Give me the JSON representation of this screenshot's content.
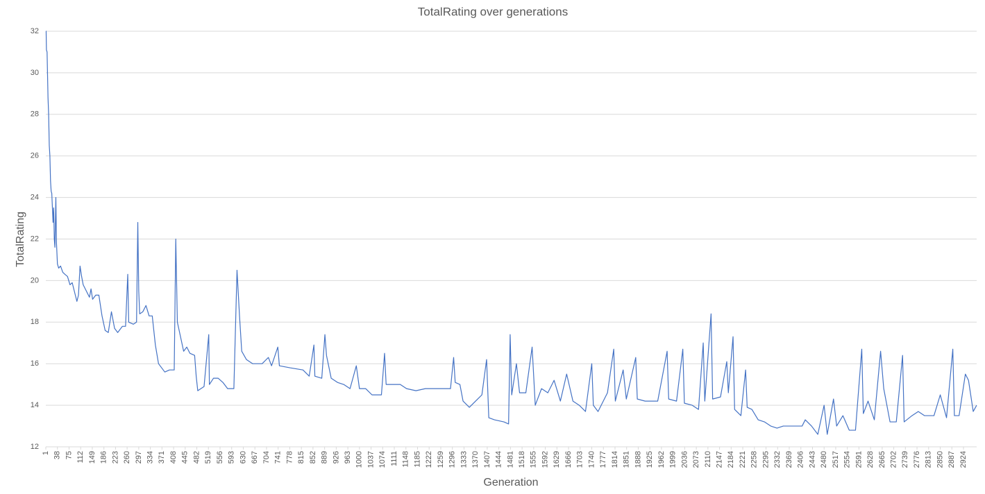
{
  "chart_data": {
    "type": "line",
    "title": "TotalRating over generations",
    "x_label": "Generation",
    "y_label": "TotalRating",
    "color": "#4472c4",
    "grid": true,
    "xlim": [
      1,
      2966
    ],
    "ylim": [
      12,
      32
    ],
    "yticks": [
      12,
      14,
      16,
      18,
      20,
      22,
      24,
      26,
      28,
      30,
      32
    ],
    "xticks": [
      1,
      38,
      75,
      112,
      149,
      186,
      223,
      260,
      297,
      334,
      371,
      408,
      445,
      482,
      519,
      556,
      593,
      630,
      667,
      704,
      741,
      778,
      815,
      852,
      889,
      926,
      963,
      1000,
      1037,
      1074,
      1111,
      1148,
      1185,
      1222,
      1259,
      1296,
      1333,
      1370,
      1407,
      1444,
      1481,
      1518,
      1555,
      1592,
      1629,
      1666,
      1703,
      1740,
      1777,
      1814,
      1851,
      1888,
      1925,
      1962,
      1999,
      2036,
      2073,
      2110,
      2147,
      2184,
      2221,
      2258,
      2295,
      2332,
      2369,
      2406,
      2443,
      2480,
      2517,
      2554,
      2591,
      2628,
      2665,
      2702,
      2739,
      2776,
      2813,
      2850,
      2887,
      2924
    ],
    "x": [
      1,
      2,
      3,
      5,
      8,
      10,
      12,
      14,
      16,
      18,
      20,
      22,
      24,
      26,
      28,
      30,
      33,
      35,
      38,
      42,
      48,
      55,
      62,
      70,
      78,
      85,
      95,
      100,
      105,
      110,
      115,
      120,
      130,
      140,
      145,
      150,
      160,
      170,
      180,
      190,
      200,
      210,
      220,
      230,
      245,
      255,
      262,
      265,
      280,
      290,
      294,
      297,
      300,
      310,
      320,
      330,
      340,
      350,
      360,
      370,
      380,
      395,
      410,
      415,
      420,
      430,
      440,
      450,
      460,
      475,
      480,
      485,
      495,
      505,
      520,
      522,
      535,
      550,
      565,
      580,
      600,
      610,
      618,
      625,
      640,
      660,
      690,
      710,
      720,
      740,
      745,
      780,
      820,
      840,
      855,
      858,
      880,
      890,
      895,
      910,
      930,
      950,
      970,
      990,
      1000,
      1020,
      1040,
      1070,
      1080,
      1085,
      1110,
      1130,
      1150,
      1180,
      1210,
      1240,
      1270,
      1290,
      1300,
      1305,
      1320,
      1330,
      1350,
      1370,
      1390,
      1405,
      1412,
      1430,
      1460,
      1475,
      1480,
      1485,
      1500,
      1510,
      1530,
      1550,
      1560,
      1580,
      1600,
      1620,
      1640,
      1660,
      1680,
      1700,
      1720,
      1740,
      1745,
      1760,
      1790,
      1810,
      1815,
      1840,
      1850,
      1880,
      1885,
      1910,
      1950,
      1980,
      1985,
      2010,
      2030,
      2035,
      2060,
      2080,
      2095,
      2100,
      2120,
      2125,
      2150,
      2170,
      2175,
      2190,
      2195,
      2215,
      2230,
      2235,
      2250,
      2270,
      2290,
      2310,
      2330,
      2350,
      2390,
      2410,
      2420,
      2440,
      2460,
      2480,
      2490,
      2510,
      2520,
      2540,
      2560,
      2580,
      2600,
      2605,
      2620,
      2640,
      2660,
      2670,
      2690,
      2710,
      2730,
      2735,
      2760,
      2780,
      2800,
      2830,
      2850,
      2870,
      2890,
      2895,
      2910,
      2930,
      2940,
      2955,
      2966
    ],
    "values": [
      32,
      32,
      31.1,
      31,
      28.8,
      28,
      26.5,
      26,
      24.8,
      24.3,
      24.2,
      23.5,
      22.8,
      23.5,
      22,
      21.6,
      24,
      21.8,
      20.8,
      20.6,
      20.7,
      20.4,
      20.3,
      20.2,
      19.8,
      19.9,
      19.3,
      19,
      19.3,
      20.7,
      20.2,
      19.8,
      19.5,
      19.2,
      19.6,
      19.1,
      19.3,
      19.3,
      18.3,
      17.6,
      17.5,
      18.5,
      17.7,
      17.5,
      17.8,
      17.8,
      20.3,
      18,
      17.9,
      18,
      22.8,
      19.5,
      18.4,
      18.5,
      18.8,
      18.3,
      18.3,
      16.9,
      16,
      15.8,
      15.6,
      15.7,
      15.7,
      22,
      18,
      17.3,
      16.6,
      16.8,
      16.5,
      16.4,
      15.4,
      14.7,
      14.8,
      14.9,
      17.4,
      15,
      15.3,
      15.3,
      15.1,
      14.8,
      14.8,
      20.5,
      18.3,
      16.6,
      16.2,
      16,
      16,
      16.3,
      15.9,
      16.8,
      15.9,
      15.8,
      15.7,
      15.4,
      16.9,
      15.4,
      15.3,
      17.4,
      16.4,
      15.3,
      15.1,
      15,
      14.8,
      15.9,
      14.8,
      14.8,
      14.5,
      14.5,
      16.5,
      15,
      15,
      15,
      14.8,
      14.7,
      14.8,
      14.8,
      14.8,
      14.8,
      16.3,
      15.1,
      15,
      14.2,
      13.9,
      14.2,
      14.5,
      16.2,
      13.4,
      13.3,
      13.2,
      13.1,
      17.4,
      14.5,
      16,
      14.6,
      14.6,
      16.8,
      14,
      14.8,
      14.6,
      15.2,
      14.2,
      15.5,
      14.2,
      14,
      13.7,
      16,
      14,
      13.7,
      14.6,
      16.7,
      14.2,
      15.7,
      14.3,
      16.3,
      14.3,
      14.2,
      14.2,
      16.6,
      14.3,
      14.2,
      16.7,
      14.1,
      14,
      13.8,
      17,
      14.2,
      18.4,
      14.3,
      14.4,
      16.1,
      14.6,
      17.3,
      13.8,
      13.5,
      15.7,
      13.9,
      13.8,
      13.3,
      13.2,
      13,
      12.9,
      13,
      13,
      13,
      13.3,
      13,
      12.6,
      14,
      12.6,
      14.3,
      13,
      13.5,
      12.8,
      12.8,
      16.7,
      13.6,
      14.2,
      13.3,
      16.6,
      14.8,
      13.2,
      13.2,
      16.4,
      13.2,
      13.5,
      13.7,
      13.5,
      13.5,
      14.5,
      13.4,
      16.7,
      13.5,
      13.5,
      15.5,
      15.2,
      13.7,
      14
    ]
  }
}
